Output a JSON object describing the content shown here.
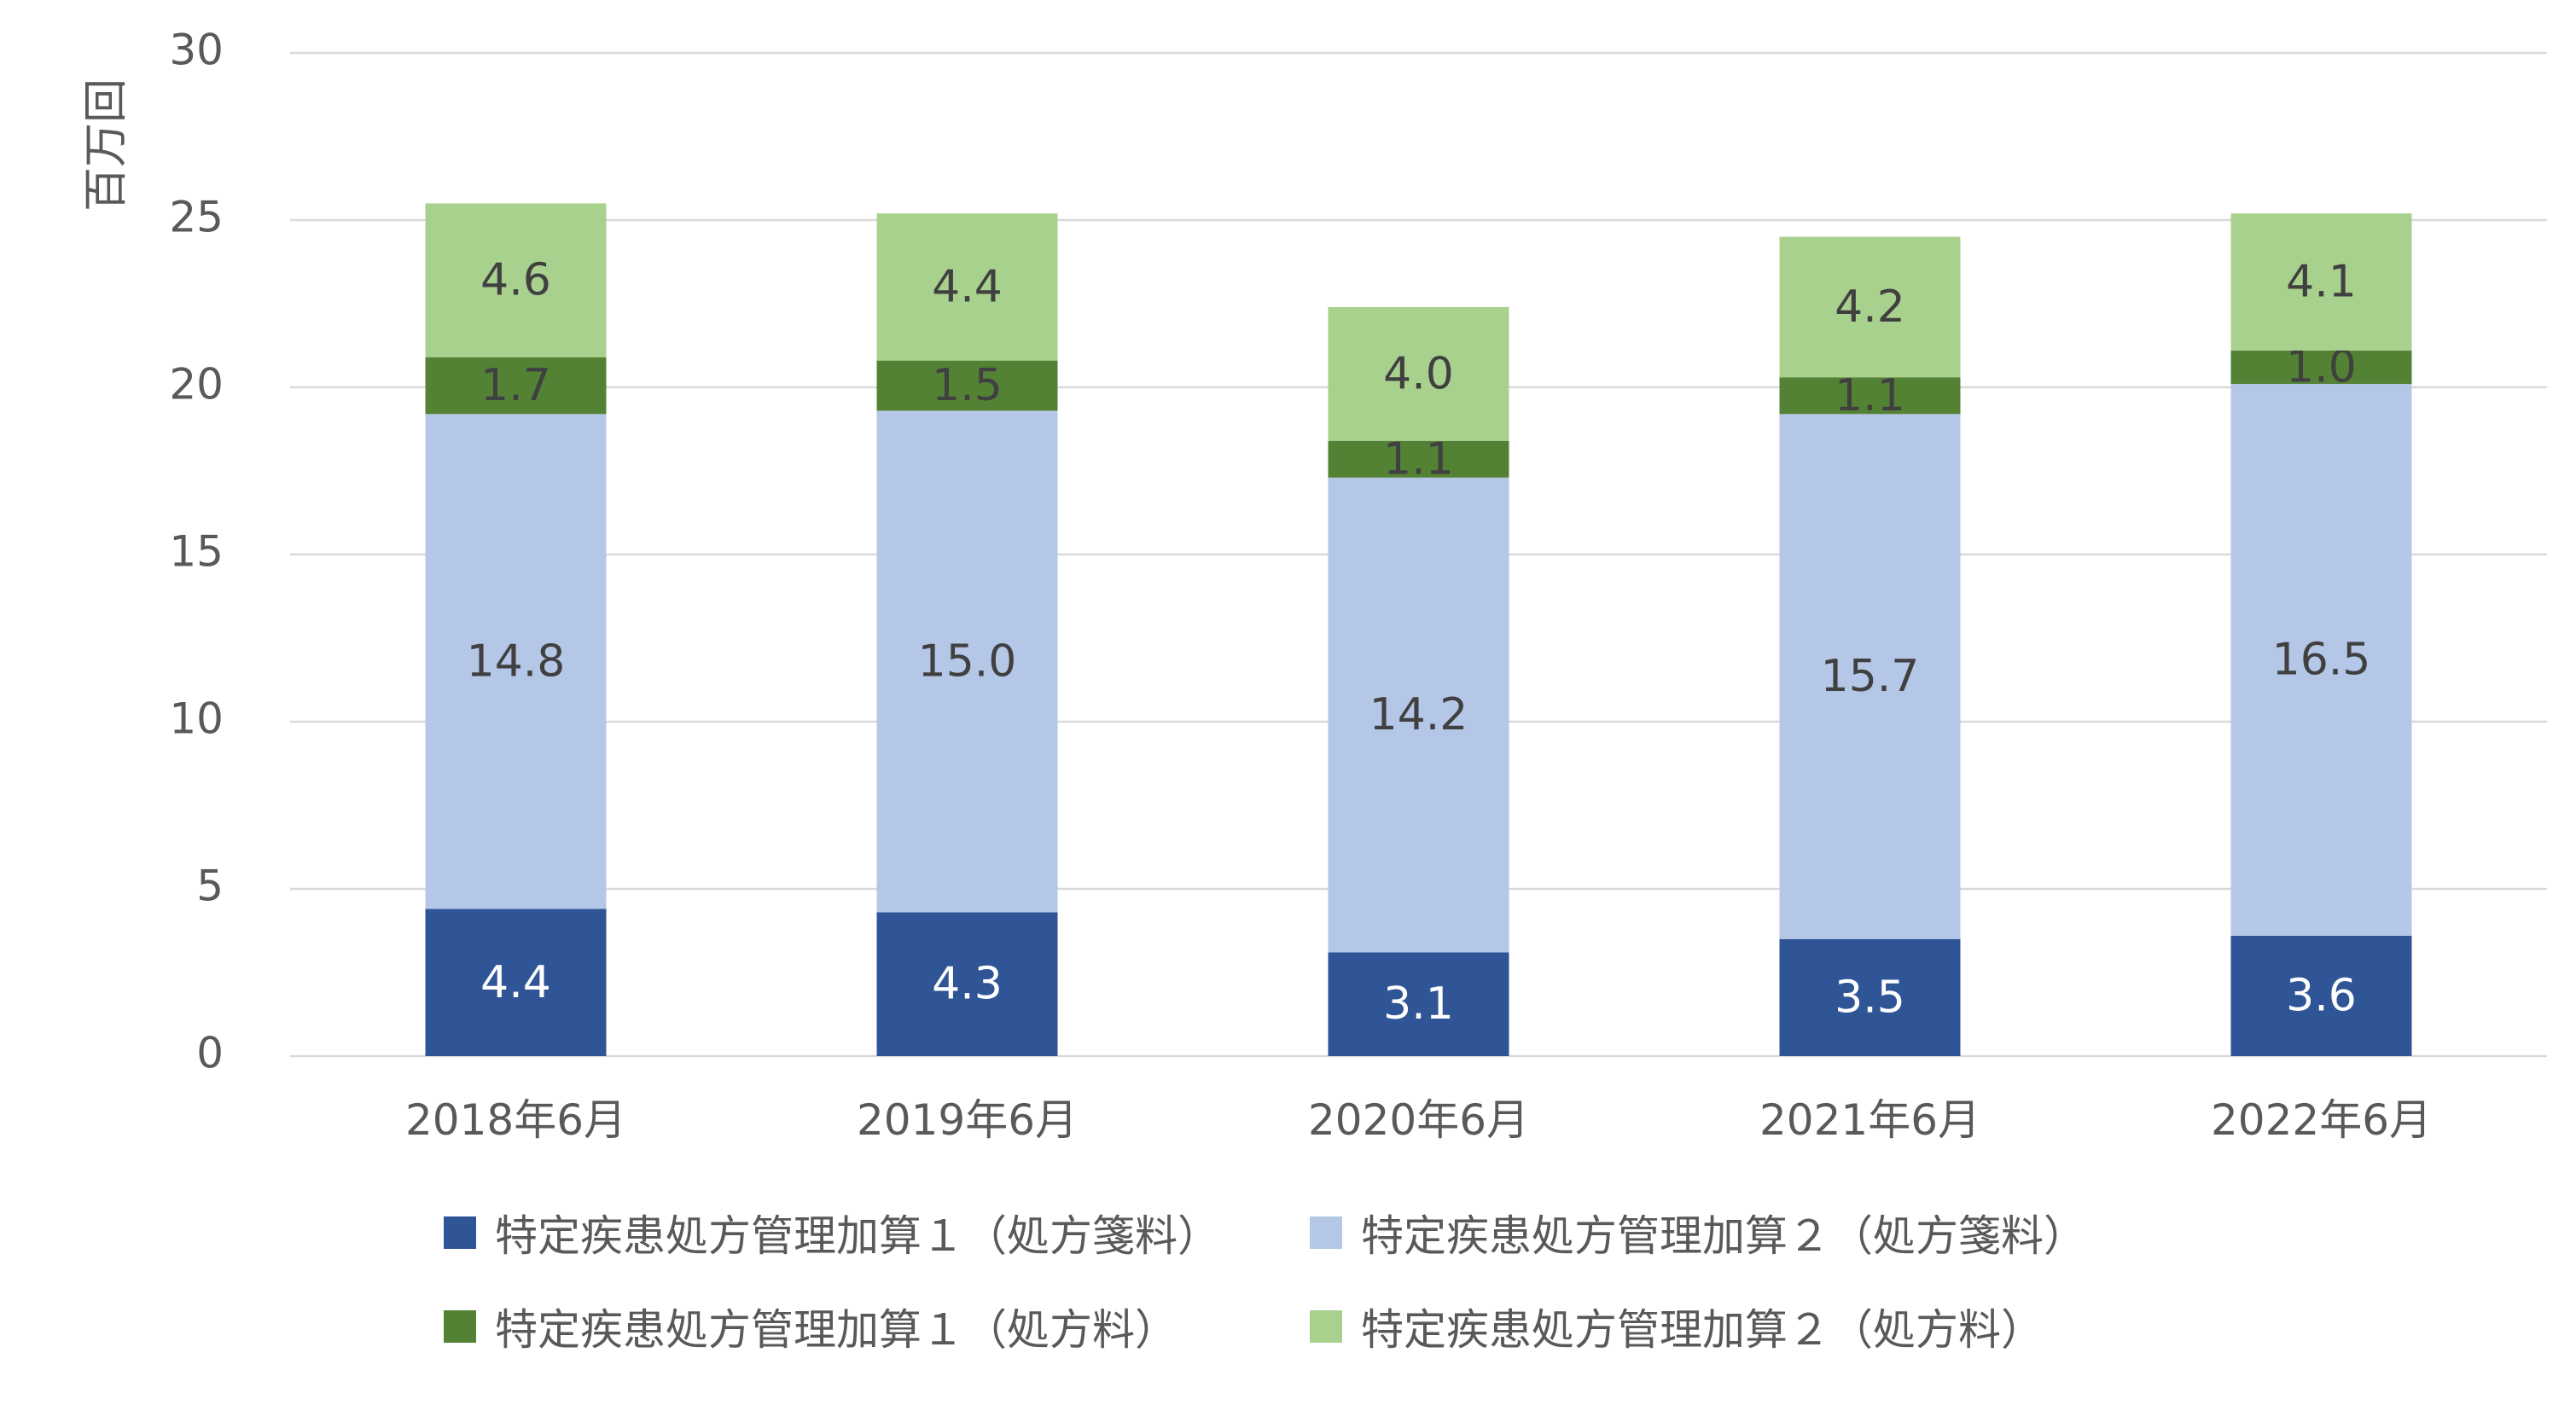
{
  "chart_data": {
    "type": "bar",
    "stacked": true,
    "ylabel": "百万回",
    "ylim": [
      0,
      30
    ],
    "yticks": [
      "0",
      "5",
      "10",
      "15",
      "20",
      "25",
      "30"
    ],
    "grid": true,
    "legend_position": "bottom",
    "categories": [
      "2018年6月",
      "2019年6月",
      "2020年6月",
      "2021年6月",
      "2022年6月"
    ],
    "series": [
      {
        "name": "特定疾患処方管理加算１（処方箋料）",
        "color": "#2F5597",
        "label_color": "#ffffff",
        "values": [
          4.4,
          4.3,
          3.1,
          3.5,
          3.6
        ]
      },
      {
        "name": "特定疾患処方管理加算２（処方箋料）",
        "color": "#B4C7E7",
        "label_color": "#404040",
        "values": [
          14.8,
          15.0,
          14.2,
          15.7,
          16.5
        ]
      },
      {
        "name": "特定疾患処方管理加算１（処方料）",
        "color": "#548235",
        "label_color": "#404040",
        "values": [
          1.7,
          1.5,
          1.1,
          1.1,
          1.0
        ]
      },
      {
        "name": "特定疾患処方管理加算２（処方料）",
        "color": "#A9D18E",
        "label_color": "#404040",
        "values": [
          4.6,
          4.4,
          4.0,
          4.2,
          4.1
        ]
      }
    ]
  }
}
